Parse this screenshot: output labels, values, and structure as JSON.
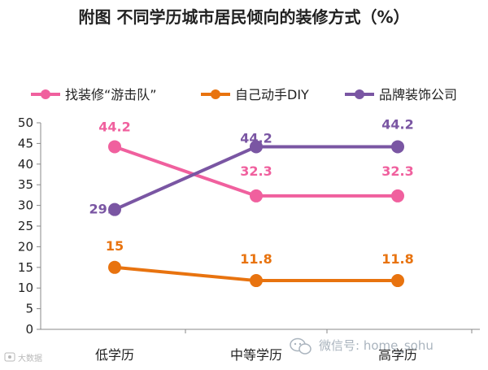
{
  "chart_data": {
    "type": "line",
    "title": "附图 不同学历城市居民倾向的装修方式（%）",
    "categories": [
      "低学历",
      "中等学历",
      "高学历"
    ],
    "series": [
      {
        "name": "找装修“游击队”",
        "values": [
          44.2,
          32.3,
          32.3
        ],
        "color": "#f0609e"
      },
      {
        "name": "自己动手DIY",
        "values": [
          15,
          11.8,
          11.8
        ],
        "color": "#e8730f"
      },
      {
        "name": "品牌装饰公司",
        "values": [
          29.0,
          44.2,
          44.2
        ],
        "color": "#7a56a3"
      }
    ],
    "data_labels": [
      [
        "44.2",
        "32.3",
        "32.3"
      ],
      [
        "15",
        "11.8",
        "11.8"
      ],
      [
        "29.0",
        "44.2",
        "44.2"
      ]
    ],
    "ylim": [
      0,
      50
    ],
    "yticks": [
      0,
      5,
      10,
      15,
      20,
      25,
      30,
      35,
      40,
      45,
      50
    ],
    "legend_position": "top",
    "grid": false
  },
  "watermark": {
    "text": "微信号: home_sohu",
    "corner_text": "大数据"
  }
}
